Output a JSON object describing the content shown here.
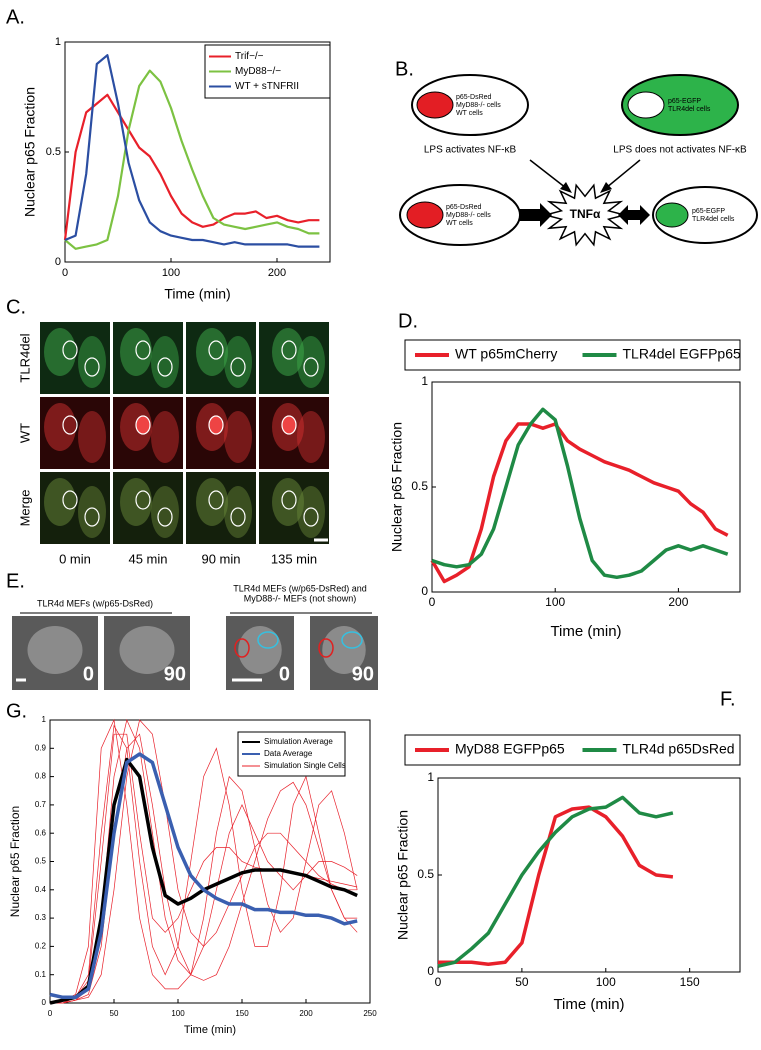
{
  "panels": {
    "A": "A.",
    "B": "B.",
    "C": "C.",
    "D": "D.",
    "E": "E.",
    "F": "F.",
    "G": "G."
  },
  "chart_data": [
    {
      "type": "line",
      "xlabel": "Time (min)",
      "ylabel": "Nuclear p65 Fraction",
      "legend": "upper right",
      "xlim": [
        0,
        250
      ],
      "xticks": [
        0,
        100,
        200
      ],
      "ylim": [
        0,
        1
      ],
      "yticks": [
        0,
        0.5,
        1
      ],
      "x": [
        0,
        10,
        20,
        30,
        40,
        50,
        60,
        70,
        80,
        90,
        100,
        110,
        120,
        130,
        140,
        150,
        160,
        170,
        180,
        190,
        200,
        210,
        220,
        230,
        240
      ],
      "series": [
        {
          "name": "Trif−/−",
          "color": "#e8202a",
          "values": [
            0.1,
            0.5,
            0.68,
            0.72,
            0.76,
            0.68,
            0.6,
            0.52,
            0.48,
            0.4,
            0.3,
            0.22,
            0.18,
            0.16,
            0.17,
            0.2,
            0.22,
            0.22,
            0.23,
            0.2,
            0.21,
            0.19,
            0.18,
            0.19,
            0.19
          ]
        },
        {
          "name": "MyD88−/−",
          "color": "#7cc242",
          "values": [
            0.1,
            0.06,
            0.07,
            0.08,
            0.1,
            0.3,
            0.6,
            0.8,
            0.87,
            0.82,
            0.7,
            0.55,
            0.42,
            0.3,
            0.2,
            0.17,
            0.16,
            0.15,
            0.16,
            0.17,
            0.18,
            0.16,
            0.15,
            0.13,
            0.13
          ]
        },
        {
          "name": "WT + sTNFRII",
          "color": "#2b4ea2",
          "values": [
            0.1,
            0.12,
            0.4,
            0.9,
            0.94,
            0.72,
            0.45,
            0.28,
            0.18,
            0.14,
            0.12,
            0.11,
            0.1,
            0.1,
            0.09,
            0.08,
            0.09,
            0.08,
            0.08,
            0.08,
            0.08,
            0.08,
            0.07,
            0.07,
            0.07
          ]
        }
      ]
    },
    {
      "type": "line",
      "xlabel": "Time (min)",
      "ylabel": "Nuclear p65 Fraction",
      "legend": "top",
      "xlim": [
        0,
        250
      ],
      "xticks": [
        0,
        100,
        200
      ],
      "ylim": [
        0,
        1
      ],
      "yticks": [
        0,
        0.5,
        1
      ],
      "x": [
        0,
        10,
        20,
        30,
        40,
        50,
        60,
        70,
        80,
        90,
        100,
        110,
        120,
        130,
        140,
        150,
        160,
        170,
        180,
        190,
        200,
        210,
        220,
        230,
        240
      ],
      "series": [
        {
          "name": "WT p65mCherry",
          "color": "#e8202a",
          "values": [
            0.15,
            0.05,
            0.08,
            0.12,
            0.3,
            0.55,
            0.72,
            0.8,
            0.8,
            0.78,
            0.8,
            0.72,
            0.68,
            0.65,
            0.62,
            0.6,
            0.58,
            0.55,
            0.52,
            0.5,
            0.48,
            0.42,
            0.38,
            0.3,
            0.27
          ]
        },
        {
          "name": "TLR4del EGFPp65",
          "color": "#1f8a45",
          "values": [
            0.15,
            0.13,
            0.12,
            0.13,
            0.18,
            0.3,
            0.5,
            0.7,
            0.8,
            0.87,
            0.82,
            0.6,
            0.35,
            0.15,
            0.08,
            0.07,
            0.08,
            0.1,
            0.15,
            0.2,
            0.22,
            0.2,
            0.22,
            0.2,
            0.18
          ]
        }
      ]
    },
    {
      "type": "line",
      "xlabel": "Time (min)",
      "ylabel": "Nuclear p65 Fraction",
      "legend": "top",
      "xlim": [
        0,
        180
      ],
      "xticks": [
        0,
        50,
        100,
        150
      ],
      "ylim": [
        0,
        1
      ],
      "yticks": [
        0,
        0.5,
        1
      ],
      "x": [
        0,
        10,
        20,
        30,
        40,
        50,
        60,
        70,
        80,
        90,
        100,
        110,
        120,
        130,
        140
      ],
      "series": [
        {
          "name": "MyD88 EGFPp65",
          "color": "#e8202a",
          "values": [
            0.05,
            0.05,
            0.05,
            0.04,
            0.05,
            0.15,
            0.5,
            0.8,
            0.84,
            0.85,
            0.8,
            0.7,
            0.55,
            0.5,
            0.49
          ]
        },
        {
          "name": "TLR4d p65DsRed",
          "color": "#1f8a45",
          "values": [
            0.03,
            0.05,
            0.12,
            0.2,
            0.35,
            0.5,
            0.62,
            0.72,
            0.8,
            0.84,
            0.85,
            0.9,
            0.82,
            0.8,
            0.82
          ]
        }
      ]
    },
    {
      "type": "line",
      "xlabel": "Time (min)",
      "ylabel": "Nuclear p65 Fraction",
      "legend": "upper right",
      "xlim": [
        0,
        250
      ],
      "xticks": [
        0,
        50,
        100,
        150,
        200,
        250
      ],
      "ylim": [
        0,
        1
      ],
      "yticks": [
        0,
        0.1,
        0.2,
        0.3,
        0.4,
        0.5,
        0.6,
        0.7,
        0.8,
        0.9,
        1
      ],
      "x": [
        0,
        10,
        20,
        30,
        40,
        50,
        60,
        70,
        80,
        90,
        100,
        110,
        120,
        130,
        140,
        150,
        160,
        170,
        180,
        190,
        200,
        210,
        220,
        230,
        240
      ],
      "series": [
        {
          "name": "Simulation Average",
          "color": "#000000",
          "values": [
            0,
            0.01,
            0.02,
            0.06,
            0.3,
            0.7,
            0.86,
            0.8,
            0.55,
            0.38,
            0.35,
            0.37,
            0.4,
            0.42,
            0.44,
            0.46,
            0.47,
            0.47,
            0.47,
            0.46,
            0.45,
            0.43,
            0.41,
            0.4,
            0.38
          ]
        },
        {
          "name": "Data Average",
          "color": "#3a5fb0",
          "values": [
            0.03,
            0.02,
            0.02,
            0.05,
            0.25,
            0.6,
            0.85,
            0.88,
            0.85,
            0.7,
            0.55,
            0.45,
            0.4,
            0.37,
            0.35,
            0.35,
            0.33,
            0.33,
            0.32,
            0.32,
            0.31,
            0.31,
            0.3,
            0.28,
            0.29
          ]
        }
      ],
      "single_cells": {
        "name": "Simulation Single Cells",
        "color": "#e8202a",
        "values": [
          [
            0,
            0,
            0.02,
            0.1,
            0.6,
            0.98,
            0.9,
            0.5,
            0.2,
            0.1,
            0.2,
            0.5,
            0.8,
            0.9,
            0.7,
            0.4,
            0.2,
            0.2,
            0.4,
            0.7,
            0.8,
            0.6,
            0.4,
            0.3,
            0.3
          ],
          [
            0,
            0,
            0.01,
            0.05,
            0.3,
            0.8,
            1,
            0.9,
            0.6,
            0.3,
            0.15,
            0.1,
            0.2,
            0.4,
            0.6,
            0.7,
            0.6,
            0.5,
            0.45,
            0.4,
            0.45,
            0.5,
            0.5,
            0.48,
            0.45
          ],
          [
            0,
            0.01,
            0.03,
            0.2,
            0.9,
            1,
            0.7,
            0.3,
            0.1,
            0.05,
            0.05,
            0.1,
            0.3,
            0.6,
            0.8,
            0.75,
            0.55,
            0.35,
            0.25,
            0.3,
            0.5,
            0.7,
            0.75,
            0.6,
            0.4
          ],
          [
            0,
            0,
            0.01,
            0.02,
            0.1,
            0.4,
            0.8,
            1,
            0.95,
            0.7,
            0.4,
            0.25,
            0.2,
            0.25,
            0.35,
            0.45,
            0.55,
            0.6,
            0.6,
            0.55,
            0.5,
            0.45,
            0.42,
            0.4,
            0.4
          ],
          [
            0,
            0,
            0.02,
            0.08,
            0.5,
            0.95,
            0.95,
            0.6,
            0.3,
            0.25,
            0.3,
            0.4,
            0.5,
            0.55,
            0.55,
            0.5,
            0.48,
            0.47,
            0.47,
            0.46,
            0.45,
            0.44,
            0.43,
            0.42,
            0.41
          ],
          [
            0,
            0,
            0.01,
            0.03,
            0.2,
            0.6,
            0.9,
            0.95,
            0.7,
            0.4,
            0.2,
            0.1,
            0.08,
            0.1,
            0.2,
            0.35,
            0.5,
            0.65,
            0.75,
            0.78,
            0.7,
            0.55,
            0.4,
            0.3,
            0.25
          ]
        ]
      }
    }
  ],
  "diagram": {
    "node_top_left": [
      "p65-DsRed",
      "MyD88-/- cells",
      "WT cells"
    ],
    "node_top_right": [
      "p65-EGFP",
      "TLR4del cells"
    ],
    "label_left": "LPS activates NF-κB",
    "label_right": "LPS does not activates NF-κB",
    "center": "TNFα",
    "node_bottom_left": [
      "p65-DsRed",
      "MyD88-/- cells",
      "WT cells"
    ],
    "node_bottom_right": [
      "p65-EGFP",
      "TLR4del cells"
    ]
  },
  "images_c": {
    "rows": [
      "TLR4del",
      "WT",
      "Merge"
    ],
    "columns": [
      "0 min",
      "45 min",
      "90 min",
      "135 min"
    ]
  },
  "images_e": {
    "caption_left": "TLR4d MEFs (w/p65-DsRed)",
    "caption_right": [
      "TLR4d MEFs (w/p65-DsRed) and",
      "MyD88-/- MEFs (not shown)"
    ],
    "labels": [
      "0",
      "90",
      "0",
      "90"
    ]
  }
}
